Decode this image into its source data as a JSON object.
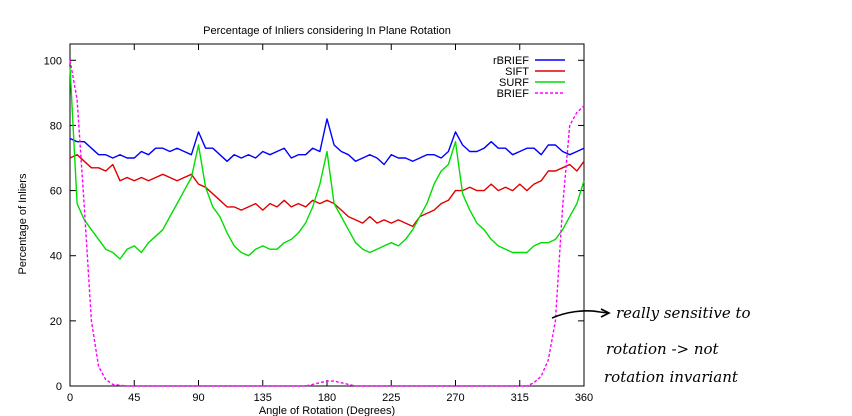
{
  "chart_data": {
    "type": "line",
    "title": "Percentage of Inliers considering In Plane Rotation",
    "xlabel": "Angle of Rotation (Degrees)",
    "ylabel": "Percentage of Inliers",
    "xlim": [
      0,
      360
    ],
    "ylim": [
      0,
      105
    ],
    "x_ticks": [
      0,
      45,
      90,
      135,
      180,
      225,
      270,
      315,
      360
    ],
    "y_ticks": [
      0,
      20,
      40,
      60,
      80,
      100
    ],
    "grid": false,
    "legend_position": "top-right",
    "x": [
      0,
      5,
      10,
      15,
      20,
      25,
      30,
      35,
      40,
      45,
      50,
      55,
      60,
      65,
      70,
      75,
      80,
      85,
      90,
      95,
      100,
      105,
      110,
      115,
      120,
      125,
      130,
      135,
      140,
      145,
      150,
      155,
      160,
      165,
      170,
      175,
      180,
      185,
      190,
      195,
      200,
      205,
      210,
      215,
      220,
      225,
      230,
      235,
      240,
      245,
      250,
      255,
      260,
      265,
      270,
      275,
      280,
      285,
      290,
      295,
      300,
      305,
      310,
      315,
      320,
      325,
      330,
      335,
      340,
      345,
      350,
      355,
      360
    ],
    "series": [
      {
        "name": "rBRIEF",
        "color": "#0000ff",
        "dashed": false,
        "values": [
          76,
          75,
          75,
          73,
          71,
          71,
          70,
          71,
          70,
          70,
          72,
          71,
          73,
          73,
          72,
          73,
          72,
          71,
          78,
          73,
          73,
          71,
          69,
          71,
          70,
          71,
          70,
          72,
          71,
          72,
          73,
          70,
          71,
          71,
          73,
          72,
          82,
          74,
          72,
          71,
          69,
          70,
          71,
          70,
          68,
          71,
          70,
          70,
          69,
          70,
          71,
          71,
          70,
          72,
          78,
          74,
          72,
          72,
          73,
          75,
          73,
          73,
          71,
          72,
          73,
          73,
          71,
          74,
          74,
          72,
          71,
          72,
          73
        ]
      },
      {
        "name": "SIFT",
        "color": "#e00000",
        "dashed": false,
        "values": [
          70,
          71,
          69,
          67,
          67,
          66,
          68,
          63,
          64,
          63,
          64,
          63,
          64,
          65,
          64,
          63,
          64,
          65,
          62,
          61,
          59,
          57,
          55,
          55,
          54,
          55,
          56,
          54,
          56,
          55,
          57,
          55,
          56,
          55,
          57,
          56,
          57,
          56,
          54,
          52,
          51,
          50,
          52,
          50,
          51,
          50,
          51,
          50,
          49,
          52,
          53,
          54,
          56,
          57,
          60,
          60,
          61,
          60,
          60,
          62,
          60,
          61,
          60,
          62,
          60,
          62,
          63,
          66,
          66,
          67,
          68,
          66,
          69
        ]
      },
      {
        "name": "SURF",
        "color": "#00dd00",
        "dashed": false,
        "values": [
          98,
          56,
          51,
          48,
          45,
          42,
          41,
          39,
          42,
          43,
          41,
          44,
          46,
          48,
          52,
          56,
          60,
          64,
          74,
          61,
          55,
          52,
          47,
          43,
          41,
          40,
          42,
          43,
          42,
          42,
          44,
          45,
          47,
          50,
          55,
          62,
          72,
          56,
          52,
          48,
          44,
          42,
          41,
          42,
          43,
          44,
          43,
          45,
          48,
          52,
          56,
          62,
          66,
          68,
          75,
          59,
          54,
          50,
          48,
          45,
          43,
          42,
          41,
          41,
          41,
          43,
          44,
          44,
          45,
          48,
          52,
          56,
          63
        ]
      },
      {
        "name": "BRIEF",
        "color": "#ff00ff",
        "dashed": true,
        "values": [
          100,
          88,
          55,
          20,
          6,
          2,
          0.5,
          0.2,
          0,
          0,
          0,
          0,
          0,
          0,
          0,
          0,
          0,
          0,
          0,
          0,
          0,
          0,
          0,
          0,
          0,
          0,
          0,
          0,
          0,
          0,
          0,
          0,
          0,
          0,
          0.5,
          1,
          1.5,
          1.5,
          1,
          0.5,
          0,
          0,
          0,
          0,
          0,
          0,
          0,
          0,
          0,
          0,
          0,
          0,
          0,
          0,
          0,
          0,
          0,
          0,
          0,
          0,
          0,
          0,
          0,
          0,
          0,
          1,
          3,
          8,
          20,
          55,
          80,
          84,
          86
        ]
      }
    ]
  },
  "annotation": {
    "lines": [
      "really sensitive to",
      "rotation -> not",
      "rotation invariant"
    ]
  }
}
